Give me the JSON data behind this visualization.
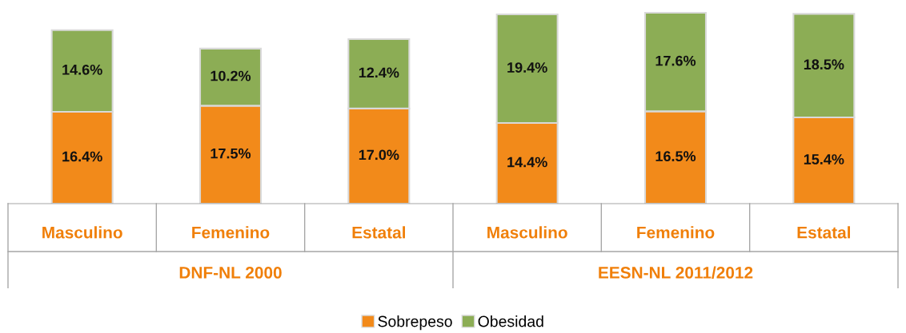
{
  "chart_data": {
    "type": "bar",
    "stacked": true,
    "legend": "bottom",
    "categories": [
      "Masculino",
      "Femenino",
      "Estatal",
      "Masculino",
      "Femenino",
      "Estatal"
    ],
    "series": [
      {
        "name": "Sobrepeso",
        "color": "#f28a1a",
        "values": [
          16.4,
          17.5,
          17.0,
          14.4,
          16.5,
          15.4
        ],
        "value_labels": [
          "16.4%",
          "17.5%",
          "17.0%",
          "14.4%",
          "16.5%",
          "15.4%"
        ]
      },
      {
        "name": "Obesidad",
        "color": "#8cad55",
        "values": [
          14.6,
          10.2,
          12.4,
          19.4,
          17.6,
          18.5
        ],
        "value_labels": [
          "14.6%",
          "10.2%",
          "12.4%",
          "19.4%",
          "17.6%",
          "18.5%"
        ]
      }
    ],
    "annotations": [
      "DNF-NL 2000",
      "EESN-NL 2011/2012"
    ]
  }
}
